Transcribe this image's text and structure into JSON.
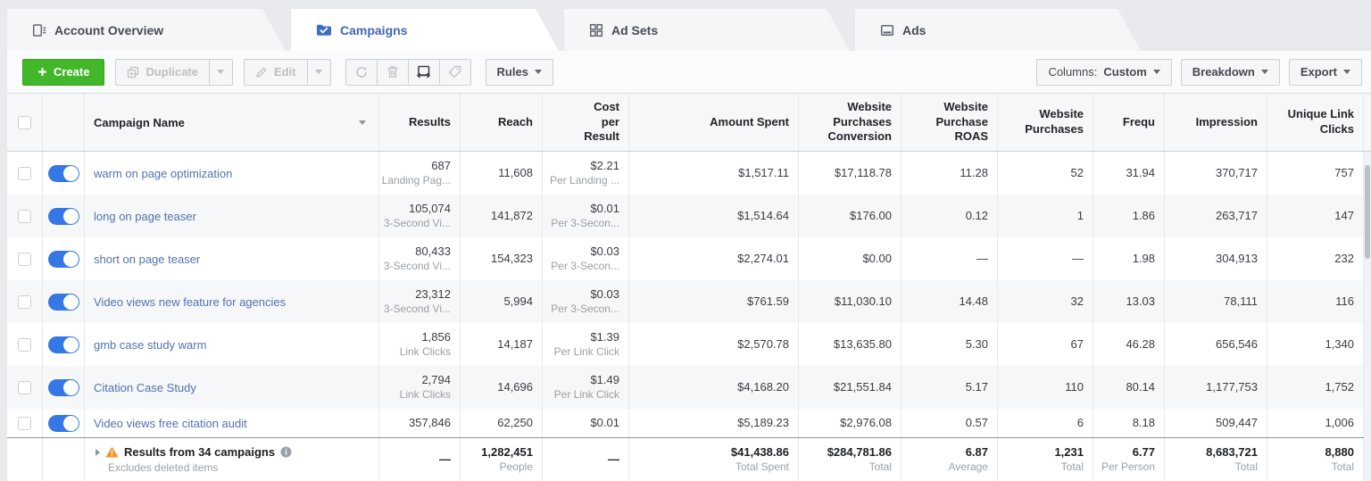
{
  "tabs": [
    {
      "label": "Account Overview",
      "active": false
    },
    {
      "label": "Campaigns",
      "active": true
    },
    {
      "label": "Ad Sets",
      "active": false
    },
    {
      "label": "Ads",
      "active": false
    }
  ],
  "toolbar": {
    "create": "Create",
    "duplicate": "Duplicate",
    "edit": "Edit",
    "rules": "Rules",
    "columns_label": "Columns:",
    "columns_value": "Custom",
    "breakdown": "Breakdown",
    "export": "Export"
  },
  "colors": {
    "accent_blue": "#3578e5",
    "create_green": "#42b72a",
    "link_blue": "#5272b0",
    "warning_orange": "#f5921e",
    "active_tab_blue": "#4267b2"
  },
  "table": {
    "headers": {
      "name": "Campaign Name",
      "results": "Results",
      "reach": "Reach",
      "cost": "Cost\nper\nResult",
      "spent": "Amount Spent",
      "wpc": "Website\nPurchases\nConversion",
      "roas": "Website\nPurchase\nROAS",
      "purchases": "Website\nPurchases",
      "frequency": "Frequ",
      "impressions": "Impression",
      "ulc": "Unique Link\nClicks"
    },
    "rows": [
      {
        "name": "warm on page optimization",
        "toggle": true,
        "results": "687",
        "results_sub": "Landing Pag...",
        "reach": "11,608",
        "cost": "$2.21",
        "cost_sub": "Per Landing ...",
        "spent": "$1,517.11",
        "wpc": "$17,118.78",
        "roas": "11.28",
        "purchases": "52",
        "frequency": "31.94",
        "impressions": "370,717",
        "ulc": "757"
      },
      {
        "name": "long on page teaser",
        "toggle": true,
        "results": "105,074",
        "results_sub": "3-Second Vi...",
        "reach": "141,872",
        "cost": "$0.01",
        "cost_sub": "Per 3-Secon...",
        "spent": "$1,514.64",
        "wpc": "$176.00",
        "roas": "0.12",
        "purchases": "1",
        "frequency": "1.86",
        "impressions": "263,717",
        "ulc": "147"
      },
      {
        "name": "short on page teaser",
        "toggle": true,
        "results": "80,433",
        "results_sub": "3-Second Vi...",
        "reach": "154,323",
        "cost": "$0.03",
        "cost_sub": "Per 3-Secon...",
        "spent": "$2,274.01",
        "wpc": "$0.00",
        "roas": "—",
        "purchases": "—",
        "frequency": "1.98",
        "impressions": "304,913",
        "ulc": "232"
      },
      {
        "name": "Video views new feature for agencies",
        "toggle": true,
        "results": "23,312",
        "results_sub": "3-Second Vi...",
        "reach": "5,994",
        "cost": "$0.03",
        "cost_sub": "Per 3-Secon...",
        "spent": "$761.59",
        "wpc": "$11,030.10",
        "roas": "14.48",
        "purchases": "32",
        "frequency": "13.03",
        "impressions": "78,111",
        "ulc": "116"
      },
      {
        "name": "gmb case study warm",
        "toggle": true,
        "results": "1,856",
        "results_sub": "Link Clicks",
        "reach": "14,187",
        "cost": "$1.39",
        "cost_sub": "Per Link Click",
        "spent": "$2,570.78",
        "wpc": "$13,635.80",
        "roas": "5.30",
        "purchases": "67",
        "frequency": "46.28",
        "impressions": "656,546",
        "ulc": "1,340"
      },
      {
        "name": "Citation Case Study",
        "toggle": true,
        "results": "2,794",
        "results_sub": "Link Clicks",
        "reach": "14,696",
        "cost": "$1.49",
        "cost_sub": "Per Link Click",
        "spent": "$4,168.20",
        "wpc": "$21,551.84",
        "roas": "5.17",
        "purchases": "110",
        "frequency": "80.14",
        "impressions": "1,177,753",
        "ulc": "1,752"
      },
      {
        "name": "Video views free citation audit",
        "toggle": true,
        "results": "357,846",
        "results_sub": "",
        "reach": "62,250",
        "cost": "$0.01",
        "cost_sub": "",
        "spent": "$5,189.23",
        "wpc": "$2,976.08",
        "roas": "0.57",
        "purchases": "6",
        "frequency": "8.18",
        "impressions": "509,447",
        "ulc": "1,006"
      }
    ],
    "footer": {
      "title": "Results from 34 campaigns",
      "subtitle": "Excludes deleted items",
      "results": "—",
      "reach": "1,282,451",
      "reach_sub": "People",
      "cost": "—",
      "spent": "$41,438.86",
      "spent_sub": "Total Spent",
      "wpc": "$284,781.86",
      "wpc_sub": "Total",
      "roas": "6.87",
      "roas_sub": "Average",
      "purchases": "1,231",
      "purchases_sub": "Total",
      "frequency": "6.77",
      "frequency_sub": "Per Person",
      "impressions": "8,683,721",
      "impressions_sub": "Total",
      "ulc": "8,880",
      "ulc_sub": "Total"
    }
  }
}
